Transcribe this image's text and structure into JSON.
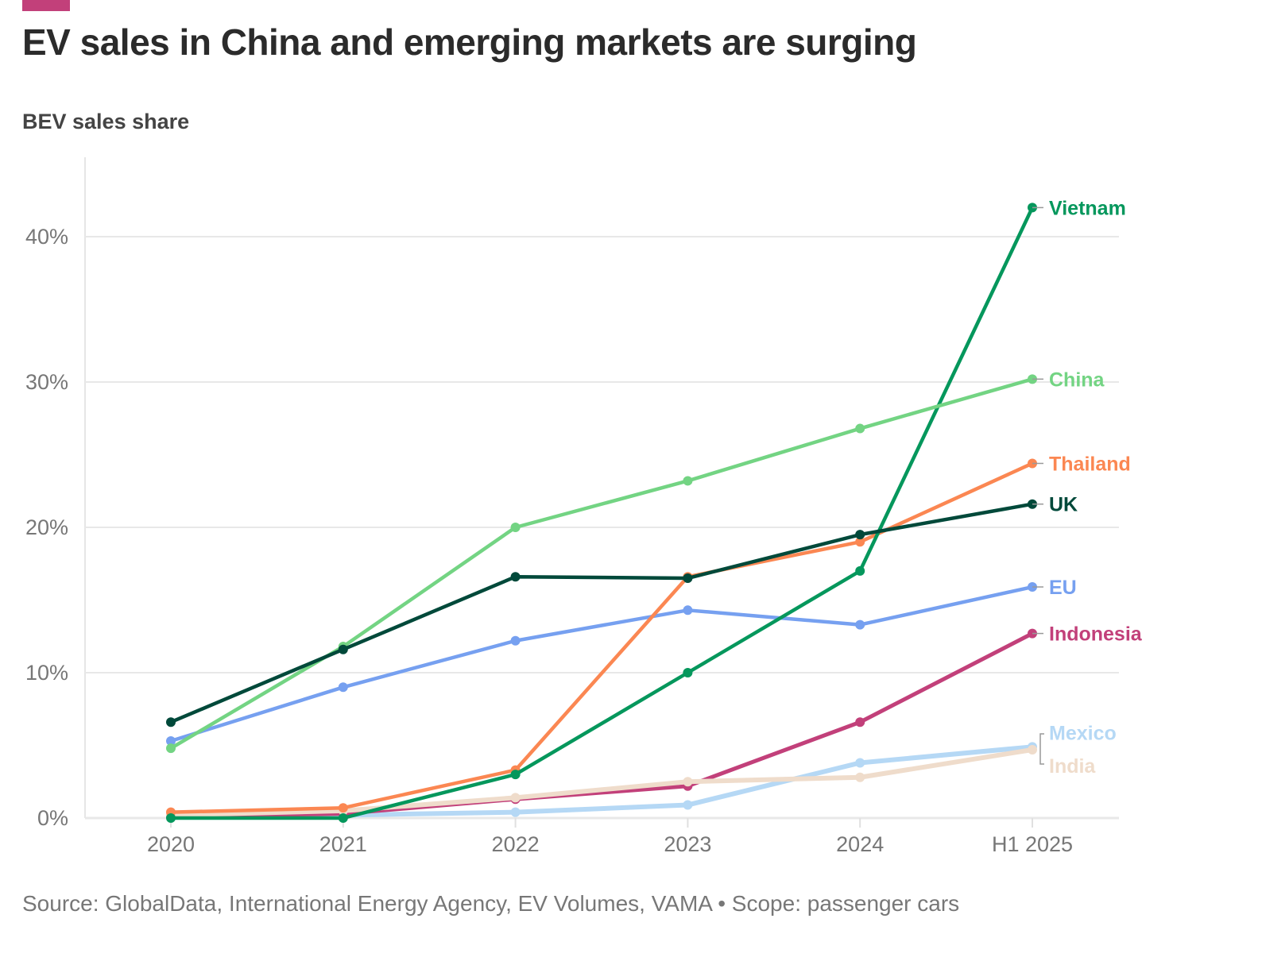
{
  "title": "EV sales in China and emerging markets are surging",
  "subtitle": "BEV sales share",
  "source": "Source: GlobalData, International Energy Agency, EV Volumes, VAMA • Scope: passenger cars",
  "accent_color": "#c2407a",
  "chart_data": {
    "type": "line",
    "title": "EV sales in China and emerging markets are surging",
    "ylabel": "BEV sales share",
    "categories": [
      "2020",
      "2021",
      "2022",
      "2023",
      "2024",
      "H1 2025"
    ],
    "ylim": [
      0,
      45
    ],
    "yticks": [
      0,
      10,
      20,
      30,
      40
    ],
    "ytick_labels": [
      "0%",
      "10%",
      "20%",
      "30%",
      "40%"
    ],
    "grid": true,
    "legend": "direct labels at right",
    "series": [
      {
        "name": "Mexico",
        "color": "#b5d8f5",
        "values": [
          0.1,
          0.2,
          0.4,
          0.9,
          3.8,
          4.9
        ]
      },
      {
        "name": "Indonesia",
        "color": "#c2407a",
        "values": [
          0.1,
          0.3,
          1.3,
          2.2,
          6.6,
          12.7
        ]
      },
      {
        "name": "India",
        "color": "#efdccb",
        "values": [
          0.2,
          0.5,
          1.4,
          2.5,
          2.8,
          4.7
        ]
      },
      {
        "name": "EU",
        "color": "#76a0f0",
        "values": [
          5.3,
          9.0,
          12.2,
          14.3,
          13.3,
          15.9
        ]
      },
      {
        "name": "Thailand",
        "color": "#fb8752",
        "values": [
          0.4,
          0.7,
          3.3,
          16.6,
          19.0,
          24.4
        ]
      },
      {
        "name": "Vietnam",
        "color": "#05975c",
        "values": [
          0,
          0,
          3.0,
          10.0,
          17.0,
          42.0
        ]
      },
      {
        "name": "China",
        "color": "#73d483",
        "values": [
          4.8,
          11.8,
          20.0,
          23.2,
          26.8,
          30.2
        ]
      },
      {
        "name": "UK",
        "color": "#00493a",
        "values": [
          6.6,
          11.6,
          16.6,
          16.5,
          19.5,
          21.6
        ]
      }
    ]
  }
}
